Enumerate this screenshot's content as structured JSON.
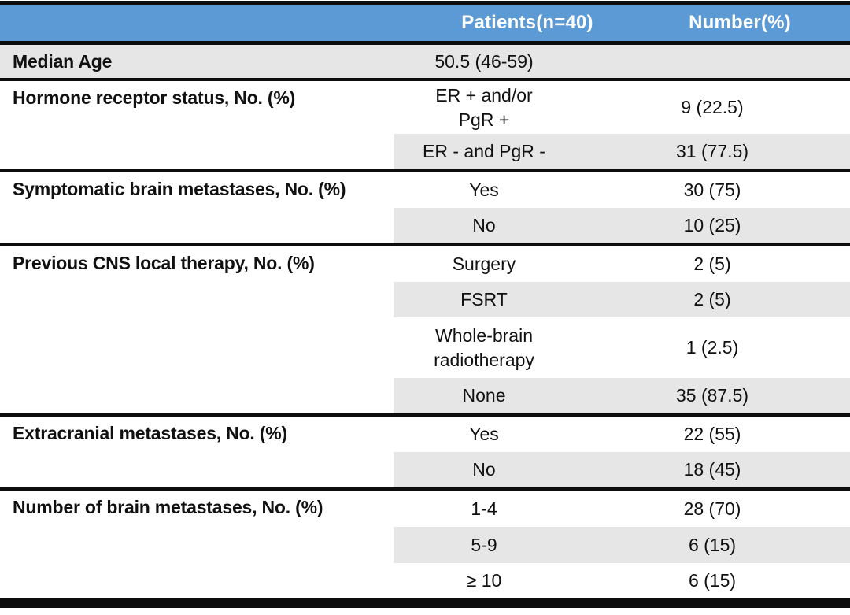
{
  "table": {
    "colors": {
      "header_bg": "#5b9ad5",
      "header_text": "#ffffff",
      "band_gray": "#e7e6e6",
      "border_black": "#0d0d0d"
    },
    "header": {
      "col2": "Patients(n=40)",
      "col3": "Number(%)"
    },
    "sections": [
      {
        "label": "Median Age",
        "rows": [
          {
            "c2": "50.5 (46-59)",
            "c3": ""
          }
        ]
      },
      {
        "label": "Hormone receptor status, No. (%)",
        "rows": [
          {
            "c2": "ER + and/or\nPgR +",
            "c3": "9 (22.5)"
          },
          {
            "c2": "ER - and PgR -",
            "c3": "31 (77.5)"
          }
        ]
      },
      {
        "label": "Symptomatic brain metastases, No. (%)",
        "rows": [
          {
            "c2": "Yes",
            "c3": "30 (75)"
          },
          {
            "c2": "No",
            "c3": "10 (25)"
          }
        ]
      },
      {
        "label": "Previous CNS local therapy, No. (%)",
        "rows": [
          {
            "c2": "Surgery",
            "c3": "2 (5)"
          },
          {
            "c2": "FSRT",
            "c3": "2 (5)"
          },
          {
            "c2": "Whole-brain\nradiotherapy",
            "c3": "1 (2.5)"
          },
          {
            "c2": "None",
            "c3": "35 (87.5)"
          }
        ]
      },
      {
        "label": "Extracranial metastases, No. (%)",
        "rows": [
          {
            "c2": "Yes",
            "c3": "22 (55)"
          },
          {
            "c2": "No",
            "c3": "18 (45)"
          }
        ]
      },
      {
        "label": "Number of brain metastases, No. (%)",
        "rows": [
          {
            "c2": "1-4",
            "c3": "28 (70)"
          },
          {
            "c2": "5-9",
            "c3": "6 (15)"
          },
          {
            "c2": "≥ 10",
            "c3": "6 (15)"
          }
        ]
      }
    ]
  }
}
